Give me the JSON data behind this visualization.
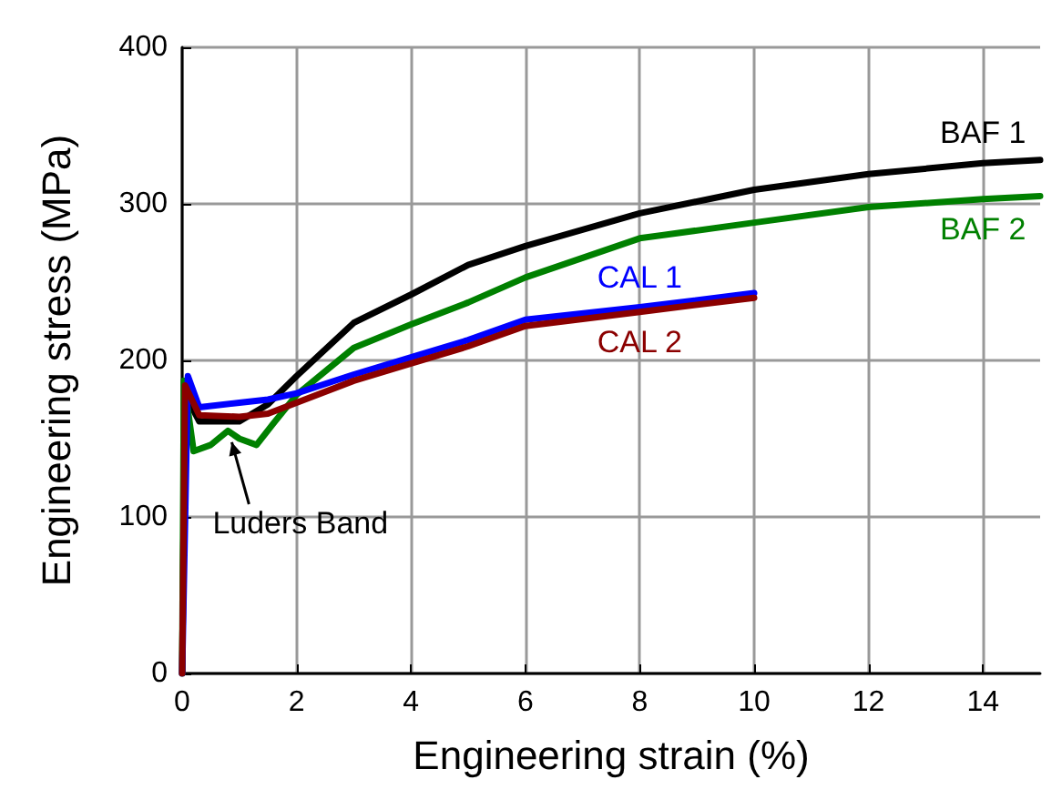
{
  "chart_data": {
    "type": "line",
    "xlabel": "Engineering strain (%)",
    "ylabel": "Engineering stress (MPa)",
    "xlim": [
      0,
      15
    ],
    "xticks": [
      0,
      2,
      4,
      6,
      8,
      10,
      12,
      14
    ],
    "ylim": [
      0,
      400
    ],
    "yticks": [
      0,
      100,
      200,
      300,
      400
    ],
    "grid": true,
    "legend": false,
    "line_style": "solid",
    "series": [
      {
        "name": "BAF 1",
        "color": "#000000",
        "x": [
          0,
          0.05,
          0.1,
          0.3,
          1,
          1.5,
          2,
          3,
          4,
          5,
          6,
          8,
          10,
          12,
          14,
          15
        ],
        "values": [
          0,
          180,
          175,
          161,
          161,
          172,
          190,
          224,
          242,
          261,
          273,
          294,
          309,
          319,
          326,
          328
        ]
      },
      {
        "name": "BAF 2",
        "color": "#008000",
        "x": [
          0,
          0.03,
          0.2,
          0.5,
          0.8,
          1,
          1.3,
          1.6,
          2,
          3,
          4,
          5,
          6,
          8,
          10,
          12,
          14,
          15
        ],
        "values": [
          0,
          187,
          142,
          146,
          155,
          150,
          146,
          160,
          178,
          208,
          223,
          237,
          253,
          278,
          288,
          298,
          303,
          305
        ]
      },
      {
        "name": "CAL 1",
        "color": "#0000ff",
        "x": [
          0,
          0.1,
          0.3,
          1,
          1.5,
          2,
          3,
          4,
          5,
          6,
          8,
          10
        ],
        "values": [
          0,
          190,
          170,
          173,
          175,
          179,
          191,
          202,
          213,
          226,
          234,
          243
        ]
      },
      {
        "name": "CAL 2",
        "color": "#8b0000",
        "x": [
          0,
          0.05,
          0.3,
          1,
          1.5,
          2,
          3,
          4,
          5,
          6,
          8,
          10
        ],
        "values": [
          0,
          184,
          165,
          164,
          166,
          173,
          187,
          198,
          209,
          222,
          231,
          240
        ]
      }
    ],
    "annotations": [
      {
        "text": "Luders Band",
        "x": 0.85,
        "y": 150
      }
    ]
  }
}
